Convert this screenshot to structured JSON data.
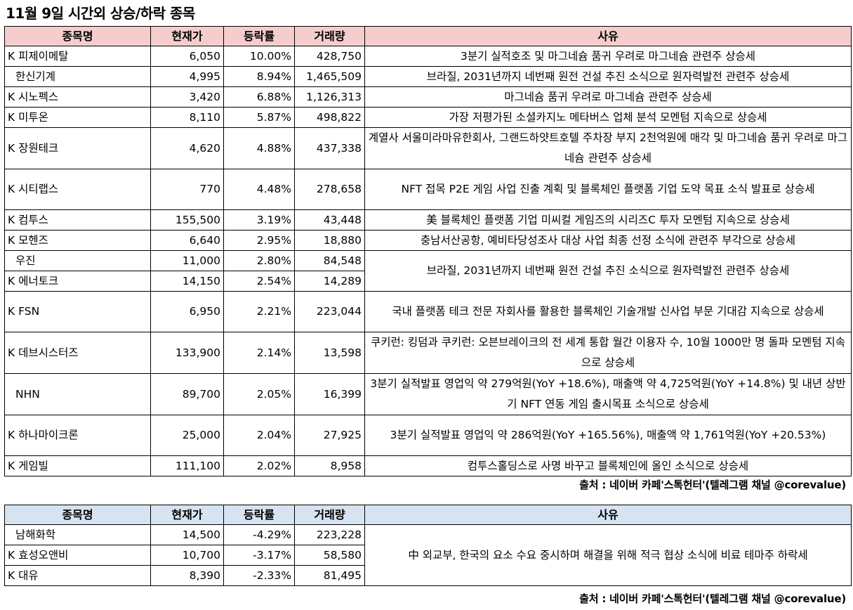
{
  "title": "11월 9일  시간외 상승/하락 종목",
  "headers": {
    "name": "종목명",
    "price": "현재가",
    "change": "등락률",
    "volume": "거래량",
    "reason": "사유"
  },
  "rise": [
    {
      "market": "K",
      "name": "피제이메탈",
      "price": "6,050",
      "change": "10.00%",
      "volume": "428,750",
      "reason": "3분기 실적호조 및 마그네슘 품귀 우려로 마그네슘 관련주 상승세"
    },
    {
      "market": "",
      "name": "한신기계",
      "price": "4,995",
      "change": "8.94%",
      "volume": "1,465,509",
      "reason": "브라질, 2031년까지 네번째 원전 건설 추진 소식으로 원자력발전 관련주 상승세"
    },
    {
      "market": "K",
      "name": "시노펙스",
      "price": "3,420",
      "change": "6.88%",
      "volume": "1,126,313",
      "reason": "마그네슘 품귀 우려로 마그네슘 관련주 상승세"
    },
    {
      "market": "K",
      "name": "미투온",
      "price": "8,110",
      "change": "5.87%",
      "volume": "498,822",
      "reason": "가장 저평가된 소셜카지노 메타버스 업체 분석 모멘텀 지속으로 상승세"
    },
    {
      "market": "K",
      "name": "장원테크",
      "price": "4,620",
      "change": "4.88%",
      "volume": "437,338",
      "reason": "계열사 서울미라마유한회사, 그랜드하얏트호텔 주차장 부지 2천억원에 매각 및 마그네슘 품귀 우려로 마그네슘 관련주 상승세"
    },
    {
      "market": "K",
      "name": "시티랩스",
      "price": "770",
      "change": "4.48%",
      "volume": "278,658",
      "reason": "NFT 접목 P2E 게임 사업 진출 계획 및 블록체인 플랫폼 기업 도약 목표 소식 발표로 상승세"
    },
    {
      "market": "K",
      "name": "컴투스",
      "price": "155,500",
      "change": "3.19%",
      "volume": "43,448",
      "reason": "美 블록체인 플랫폼 기업 미씨컬 게임즈의 시리즈C 투자 모멘텀 지속으로 상승세"
    },
    {
      "market": "K",
      "name": "모헨즈",
      "price": "6,640",
      "change": "2.95%",
      "volume": "18,880",
      "reason": "충남서산공항, 예비타당성조사 대상 사업 최종 선정 소식에 관련주 부각으로 상승세"
    },
    {
      "market": "",
      "name": "우진",
      "price": "11,000",
      "change": "2.80%",
      "volume": "84,548",
      "reason": "브라질, 2031년까지 네번째 원전 건설 추진 소식으로 원자력발전 관련주 상승세"
    },
    {
      "market": "K",
      "name": "에너토크",
      "price": "14,150",
      "change": "2.54%",
      "volume": "14,289",
      "reason": ""
    },
    {
      "market": "K",
      "name": "FSN",
      "price": "6,950",
      "change": "2.21%",
      "volume": "223,044",
      "reason": "국내 플랫폼 테크 전문 자회사를 활용한 블록체인 기술개발 신사업 부문 기대감 지속으로 상승세"
    },
    {
      "market": "K",
      "name": "데브시스터즈",
      "price": "133,900",
      "change": "2.14%",
      "volume": "13,598",
      "reason": "쿠키런: 킹덤과 쿠키런: 오븐브레이크의 전 세계 통합 월간 이용자 수, 10월 1000만 명 돌파 모멘텀 지속으로 상승세"
    },
    {
      "market": "",
      "name": "NHN",
      "price": "89,700",
      "change": "2.05%",
      "volume": "16,399",
      "reason": "3분기 실적발표 영업익 약 279억원(YoY +18.6%), 매출액 약 4,725억원(YoY +14.8%) 및 내년 상반기 NFT 연동 게임 출시목표 소식으로 상승세"
    },
    {
      "market": "K",
      "name": "하나마이크론",
      "price": "25,000",
      "change": "2.04%",
      "volume": "27,925",
      "reason": "3분기 실적발표 영업익 약 286억원(YoY +165.56%), 매출액 약 1,761억원(YoY +20.53%)"
    },
    {
      "market": "K",
      "name": "게임빌",
      "price": "111,100",
      "change": "2.02%",
      "volume": "8,958",
      "reason": "컴투스홀딩스로 사명 바꾸고 블록체인에 올인 소식으로 상승세"
    }
  ],
  "fall": [
    {
      "market": "",
      "name": "남해화학",
      "price": "14,500",
      "change": "-4.29%",
      "volume": "223,228",
      "reason": "中 외교부, 한국의 요소 수요 중시하며 해결을 위해 적극 협상 소식에 비료 테마주 하락세"
    },
    {
      "market": "K",
      "name": "효성오앤비",
      "price": "10,700",
      "change": "-3.17%",
      "volume": "58,580",
      "reason": ""
    },
    {
      "market": "K",
      "name": "대유",
      "price": "8,390",
      "change": "-2.33%",
      "volume": "81,495",
      "reason": ""
    }
  ],
  "source": "출처 : 네이버 카페'스톡헌터'(텔레그램 채널 @corevalue)",
  "colors": {
    "rise_header_bg": "#f5cdcd",
    "fall_header_bg": "#d6e3f1",
    "border": "#000000"
  }
}
